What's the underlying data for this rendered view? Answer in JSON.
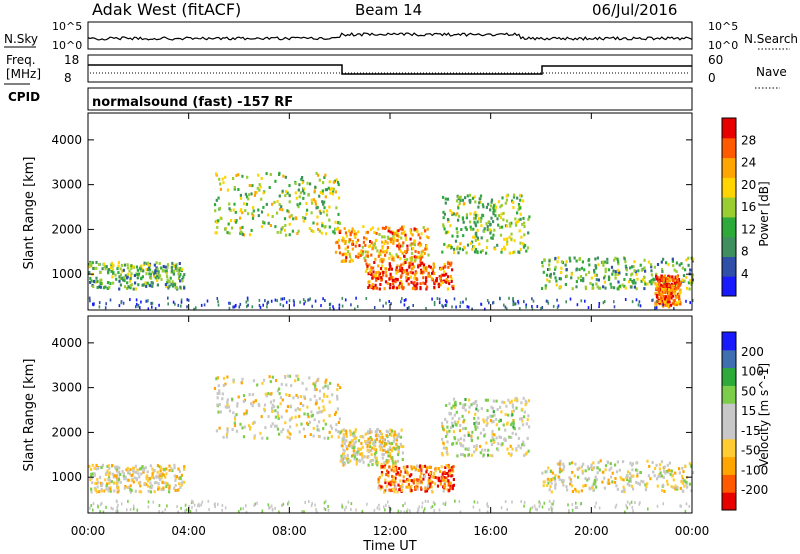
{
  "header": {
    "station": "Adak West (fitACF)",
    "beam": "Beam 14",
    "date": "06/Jul/2016"
  },
  "top_panels": {
    "nsky_label": "N.Sky",
    "nsky_ticks": [
      "10^5",
      "10^0"
    ],
    "nsearch_label": "N.Search",
    "nsearch_ticks": [
      "10^5",
      "10^0"
    ],
    "freq_label_line1": "Freq.",
    "freq_label_line2": "[MHz]",
    "freq_ticks": [
      "18",
      "8"
    ],
    "nave_label": "Nave",
    "nave_ticks": [
      "60",
      "0"
    ],
    "cpid_label": "CPID",
    "cpid_text": "normalsound (fast) -157 RF"
  },
  "colors": {
    "power_scale": [
      "#1a1aff",
      "#2f4fa8",
      "#3f8f5f",
      "#2eaa3a",
      "#9acd32",
      "#ffd400",
      "#ffa500",
      "#ff5a00",
      "#e60000"
    ],
    "velocity_scale": [
      "#e60000",
      "#ff5a00",
      "#ffa500",
      "#ffcc33",
      "#c8c8c8",
      "#c8c8c8",
      "#7ccd4a",
      "#2eaa3a",
      "#3f6fb0",
      "#1a1aff"
    ]
  },
  "chart_data": [
    {
      "type": "heatmap",
      "panel": "power",
      "ylabel": "Slant Range [km]",
      "xlabel": "Time UT",
      "x_ticks": [
        "00:00",
        "04:00",
        "08:00",
        "12:00",
        "16:00",
        "20:00",
        "00:00"
      ],
      "y_ticks": [
        "1000",
        "2000",
        "3000",
        "4000"
      ],
      "ylim": [
        200,
        4600
      ],
      "xlim_hours": [
        0,
        24
      ],
      "colorbar_label": "Power [dB]",
      "colorbar_ticks": [
        "28",
        "24",
        "20",
        "16",
        "12",
        "8",
        "4"
      ],
      "regions": [
        {
          "t": [
            0.0,
            3.8
          ],
          "r": [
            700,
            1300
          ],
          "level": 0.4
        },
        {
          "t": [
            5.0,
            10.0
          ],
          "r": [
            1900,
            3300
          ],
          "level": 0.5
        },
        {
          "t": [
            9.8,
            13.5
          ],
          "r": [
            1300,
            2100
          ],
          "level": 0.7
        },
        {
          "t": [
            11.0,
            14.5
          ],
          "r": [
            700,
            1300
          ],
          "level": 0.85
        },
        {
          "t": [
            14.0,
            17.5
          ],
          "r": [
            1500,
            2800
          ],
          "level": 0.45
        },
        {
          "t": [
            18.0,
            24.0
          ],
          "r": [
            700,
            1400
          ],
          "level": 0.4
        },
        {
          "t": [
            22.5,
            23.5
          ],
          "r": [
            300,
            1000
          ],
          "level": 0.8
        }
      ]
    },
    {
      "type": "heatmap",
      "panel": "velocity",
      "ylabel": "Slant Range [km]",
      "xlabel": "Time UT",
      "x_ticks": [
        "00:00",
        "04:00",
        "08:00",
        "12:00",
        "16:00",
        "20:00",
        "00:00"
      ],
      "y_ticks": [
        "1000",
        "2000",
        "3000",
        "4000"
      ],
      "ylim": [
        200,
        4600
      ],
      "xlim_hours": [
        0,
        24
      ],
      "colorbar_label": "Velocity [m s^-1]",
      "colorbar_ticks": [
        "200",
        "100",
        "50",
        "15",
        "-15",
        "-50",
        "-100",
        "-200"
      ],
      "regions": [
        {
          "t": [
            0.0,
            3.8
          ],
          "r": [
            700,
            1300
          ],
          "level": 0.45
        },
        {
          "t": [
            5.0,
            10.0
          ],
          "r": [
            1900,
            3300
          ],
          "level": 0.45
        },
        {
          "t": [
            10.0,
            12.5
          ],
          "r": [
            1300,
            2100
          ],
          "level": 0.45
        },
        {
          "t": [
            11.5,
            14.5
          ],
          "r": [
            700,
            1300
          ],
          "level": 0.2
        },
        {
          "t": [
            14.0,
            17.5
          ],
          "r": [
            1500,
            2800
          ],
          "level": 0.5
        },
        {
          "t": [
            18.0,
            24.0
          ],
          "r": [
            700,
            1400
          ],
          "level": 0.45
        }
      ]
    }
  ]
}
